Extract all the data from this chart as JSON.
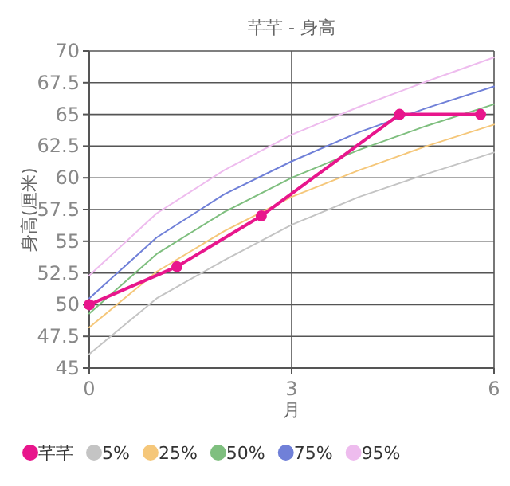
{
  "chart_data": {
    "type": "line",
    "title": "芊芊 - 身高",
    "xlabel": "月",
    "ylabel": "身高(厘米)",
    "xlim": [
      0,
      6
    ],
    "xticks": [
      0,
      3,
      6
    ],
    "ylim": [
      45,
      70
    ],
    "yticks": [
      45,
      47.5,
      50,
      52.5,
      55,
      57.5,
      60,
      62.5,
      65,
      67.5,
      70
    ],
    "grid": true,
    "legend": "bottom",
    "series": [
      {
        "name": "芊芊",
        "color": "#e8168c",
        "marker": "circle",
        "x": [
          0,
          1.3,
          2.55,
          4.6,
          5.8
        ],
        "values": [
          50,
          53,
          57,
          65,
          65
        ]
      },
      {
        "name": "5%",
        "color": "#c4c4c4",
        "marker": "none",
        "x": [
          0,
          1,
          2,
          3,
          4,
          5,
          6
        ],
        "values": [
          46.1,
          50.5,
          53.5,
          56.3,
          58.5,
          60.3,
          62.0
        ]
      },
      {
        "name": "25%",
        "color": "#f5c77a",
        "marker": "none",
        "x": [
          0,
          1,
          2,
          3,
          4,
          5,
          6
        ],
        "values": [
          48.2,
          52.6,
          55.8,
          58.5,
          60.6,
          62.5,
          64.2
        ]
      },
      {
        "name": "50%",
        "color": "#7fbf7f",
        "marker": "none",
        "x": [
          0,
          1,
          2,
          3,
          4,
          5,
          6
        ],
        "values": [
          49.3,
          54.0,
          57.3,
          60.0,
          62.2,
          64.1,
          65.8
        ]
      },
      {
        "name": "75%",
        "color": "#7080d8",
        "marker": "none",
        "x": [
          0,
          1,
          2,
          3,
          4,
          5,
          6
        ],
        "values": [
          50.5,
          55.3,
          58.7,
          61.3,
          63.6,
          65.5,
          67.2
        ]
      },
      {
        "name": "95%",
        "color": "#eebcee",
        "marker": "none",
        "x": [
          0,
          1,
          2,
          3,
          4,
          5,
          6
        ],
        "values": [
          52.3,
          57.2,
          60.6,
          63.4,
          65.6,
          67.6,
          69.5
        ]
      }
    ]
  }
}
